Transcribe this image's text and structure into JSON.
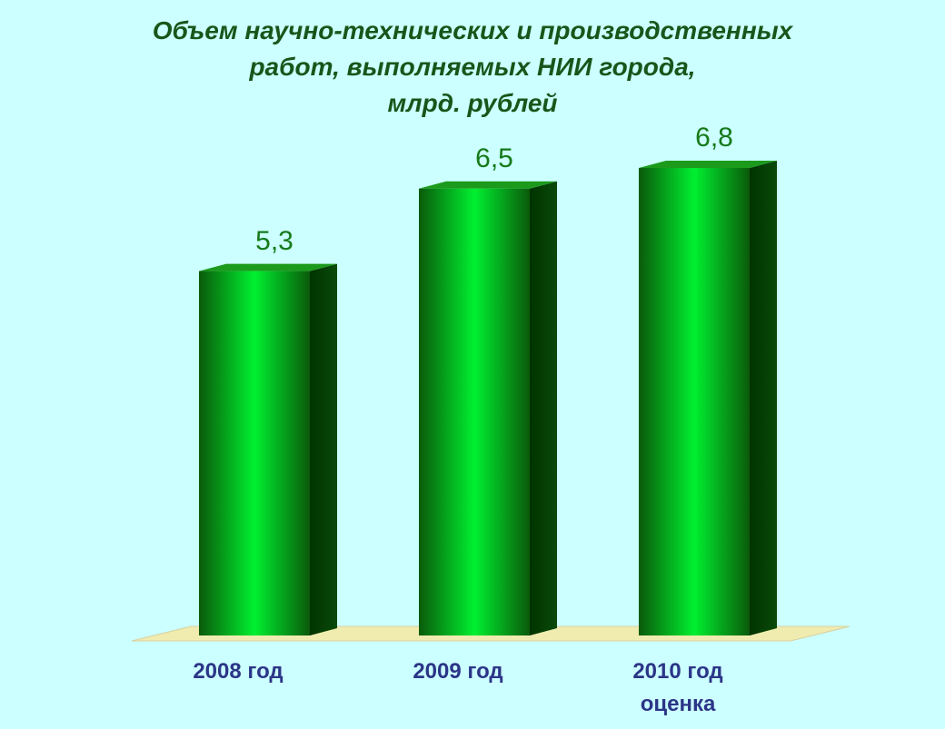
{
  "chart_data": {
    "type": "bar3d",
    "title": [
      "Объем научно-технических и производственных",
      "работ, выполняемых НИИ города,",
      "млрд. рублей"
    ],
    "categories": [
      "2008 год",
      "2009 год",
      "2010 год\nоценка"
    ],
    "values": [
      5.3,
      6.5,
      6.8
    ],
    "value_labels": [
      "5,3",
      "6,5",
      "6,8"
    ],
    "color": "#00f030"
  }
}
